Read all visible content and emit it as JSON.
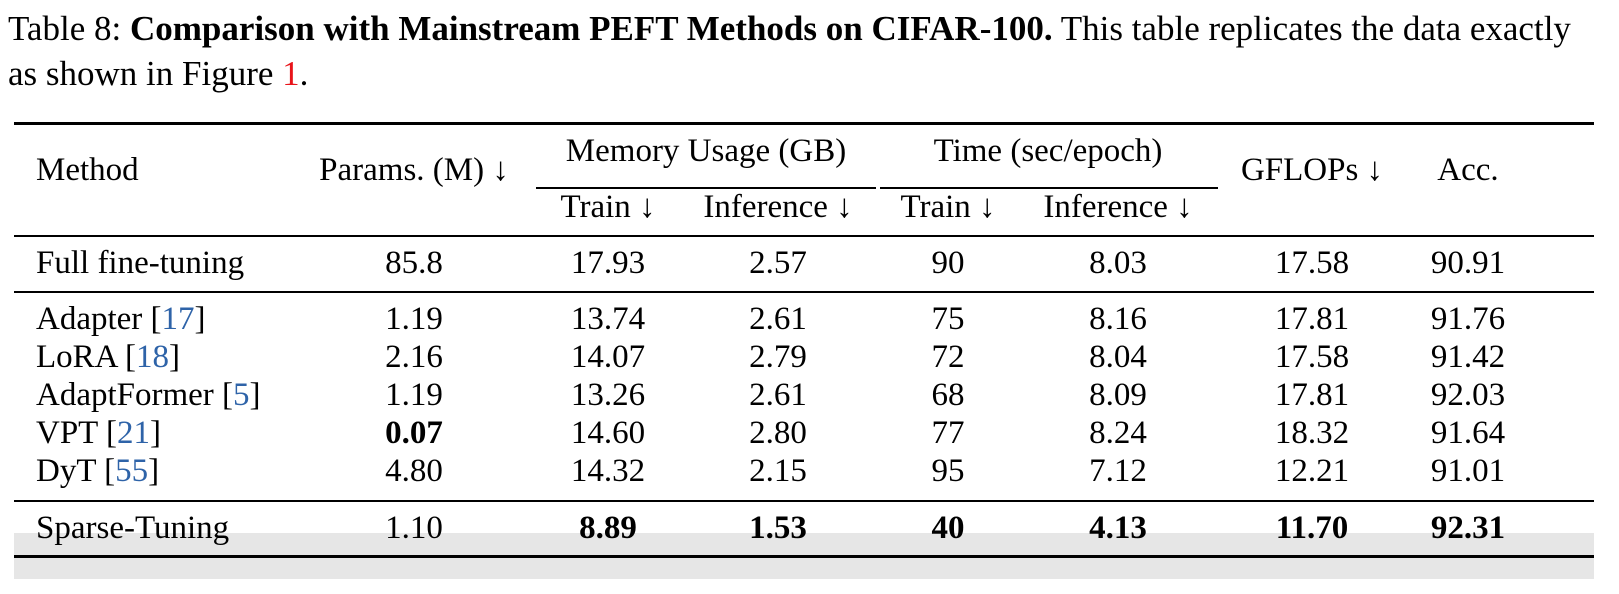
{
  "caption": {
    "label": "Table 8:",
    "title": "Comparison with Mainstream PEFT Methods on CIFAR-100.",
    "text_before_ref": "This table replicates the data exactly as shown in Figure",
    "figure_ref": "1",
    "text_after_ref": "."
  },
  "header": {
    "method": "Method",
    "params": "Params. (M) ↓",
    "memory_group": "Memory Usage (GB)",
    "time_group": "Time (sec/epoch)",
    "gflops": "GFLOPs ↓",
    "acc": "Acc.",
    "mem_train": "Train ↓",
    "mem_inference": "Inference ↓",
    "time_train": "Train ↓",
    "time_inference": "Inference ↓"
  },
  "rows": [
    {
      "method": "Full fine-tuning",
      "ref": "",
      "params": "85.8",
      "mem_train": "17.93",
      "mem_inference": "2.57",
      "time_train": "90",
      "time_inference": "8.03",
      "gflops": "17.58",
      "acc": "90.91"
    },
    {
      "method": "Adapter",
      "ref": "17",
      "params": "1.19",
      "mem_train": "13.74",
      "mem_inference": "2.61",
      "time_train": "75",
      "time_inference": "8.16",
      "gflops": "17.81",
      "acc": "91.76"
    },
    {
      "method": "LoRA",
      "ref": "18",
      "params": "2.16",
      "mem_train": "14.07",
      "mem_inference": "2.79",
      "time_train": "72",
      "time_inference": "8.04",
      "gflops": "17.58",
      "acc": "91.42"
    },
    {
      "method": "AdaptFormer",
      "ref": "5",
      "params": "1.19",
      "mem_train": "13.26",
      "mem_inference": "2.61",
      "time_train": "68",
      "time_inference": "8.09",
      "gflops": "17.81",
      "acc": "92.03"
    },
    {
      "method": "VPT",
      "ref": "21",
      "params": "0.07",
      "mem_train": "14.60",
      "mem_inference": "2.80",
      "time_train": "77",
      "time_inference": "8.24",
      "gflops": "18.32",
      "acc": "91.64"
    },
    {
      "method": "DyT",
      "ref": "55",
      "params": "4.80",
      "mem_train": "14.32",
      "mem_inference": "2.15",
      "time_train": "95",
      "time_inference": "7.12",
      "gflops": "12.21",
      "acc": "91.01"
    },
    {
      "method": "Sparse-Tuning",
      "ref": "",
      "params": "1.10",
      "mem_train": "8.89",
      "mem_inference": "1.53",
      "time_train": "40",
      "time_inference": "4.13",
      "gflops": "11.70",
      "acc": "92.31"
    }
  ],
  "bold_cells": [
    {
      "row": 4,
      "col": "params"
    },
    {
      "row": 6,
      "col": "mem_train"
    },
    {
      "row": 6,
      "col": "mem_inference"
    },
    {
      "row": 6,
      "col": "time_train"
    },
    {
      "row": 6,
      "col": "time_inference"
    },
    {
      "row": 6,
      "col": "gflops"
    },
    {
      "row": 6,
      "col": "acc"
    }
  ],
  "highlight_row": 6
}
